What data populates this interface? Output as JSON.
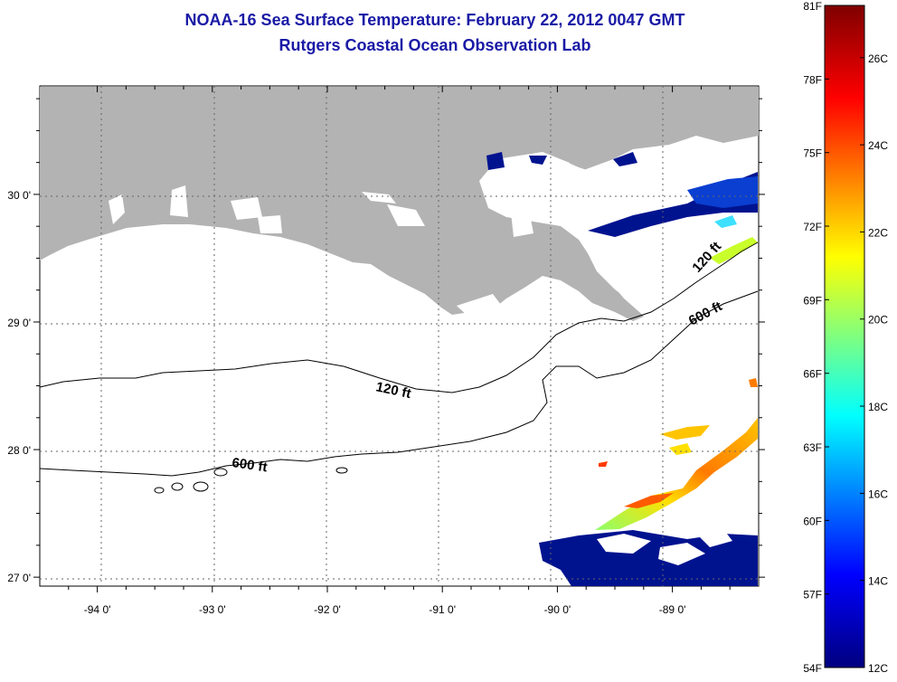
{
  "title": {
    "line1": "NOAA-16 Sea Surface Temperature:  February 22, 2012 0047 GMT",
    "line2": "Rutgers Coastal Ocean Observation Lab"
  },
  "map": {
    "lon_range": [
      -94.5,
      -88.25
    ],
    "lat_range": [
      26.93,
      30.85
    ],
    "lon_ticks": [
      {
        "value": -94,
        "label": "-94 0'"
      },
      {
        "value": -93,
        "label": "-93 0'"
      },
      {
        "value": -92,
        "label": "-92 0'"
      },
      {
        "value": -91,
        "label": "-91 0'"
      },
      {
        "value": -90,
        "label": "-90 0'"
      },
      {
        "value": -89,
        "label": "-89 0'"
      }
    ],
    "lat_ticks": [
      {
        "value": 30,
        "label": "30 0'"
      },
      {
        "value": 29,
        "label": "29 0'"
      },
      {
        "value": 28,
        "label": "28 0'"
      },
      {
        "value": 27,
        "label": "27 0'"
      }
    ],
    "contour_labels": {
      "c120_west": "120 ft",
      "c120_east": "120 ft",
      "c600_west": "600 ft",
      "c600_east": "600 ft"
    },
    "colors": {
      "land": "#b3b3b3",
      "ocean": "#ffffff",
      "cold_water": "#00138f"
    }
  },
  "colorbar": {
    "min_c": 12,
    "max_c": 27.2,
    "fahrenheit_labels": [
      "81F",
      "78F",
      "75F",
      "72F",
      "69F",
      "66F",
      "63F",
      "60F",
      "57F",
      "54F"
    ],
    "celsius_labels": [
      "26C",
      "24C",
      "22C",
      "20C",
      "18C",
      "16C",
      "14C",
      "12C"
    ],
    "stops": [
      "#00007f",
      "#0000ff",
      "#00ffff",
      "#ffff00",
      "#ff0000",
      "#7f0000"
    ]
  }
}
